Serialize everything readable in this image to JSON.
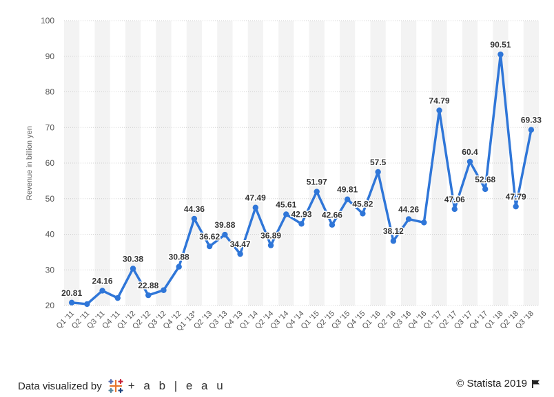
{
  "chart_data": {
    "type": "line",
    "title": "",
    "xlabel": "",
    "ylabel": "Revenue in billion yen",
    "ylim": [
      20,
      100
    ],
    "yticks": [
      20,
      30,
      40,
      50,
      60,
      70,
      80,
      90,
      100
    ],
    "grid": true,
    "categories": [
      "Q1 '11",
      "Q2 '11",
      "Q3 '11",
      "Q4 '11",
      "Q1 '12",
      "Q2 '12",
      "Q3 '12",
      "Q4 '12",
      "Q1 '13*",
      "Q2 '13",
      "Q3 '13",
      "Q4 '13",
      "Q1 '14",
      "Q2 '14",
      "Q3 '14",
      "Q4 '14",
      "Q1 '15",
      "Q2 '15",
      "Q3 '15",
      "Q4 '15",
      "Q1 '16",
      "Q2 '16",
      "Q3 '16",
      "Q4 '16",
      "Q1 '17",
      "Q2 '17",
      "Q3 '17",
      "Q4 '17",
      "Q1 '18",
      "Q2 '18",
      "Q3 '18"
    ],
    "values": [
      20.81,
      20.4,
      24.16,
      22.1,
      30.38,
      22.88,
      24.3,
      30.88,
      44.36,
      36.62,
      39.88,
      34.47,
      47.49,
      36.89,
      45.61,
      42.93,
      51.97,
      42.66,
      49.81,
      45.82,
      57.5,
      38.12,
      44.26,
      43.3,
      74.79,
      47.06,
      60.4,
      52.68,
      90.51,
      47.79,
      69.33
    ],
    "labels": [
      "20.81",
      "",
      "24.16",
      "",
      "30.38",
      "22.88",
      "",
      "30.88",
      "44.36",
      "36.62",
      "39.88",
      "34.47",
      "47.49",
      "36.89",
      "45.61",
      "42.93",
      "51.97",
      "42.66",
      "49.81",
      "45.82",
      "57.5",
      "38.12",
      "44.26",
      "",
      "74.79",
      "47.06",
      "60.4",
      "52.68",
      "90.51",
      "47.79",
      "69.33"
    ],
    "colors": {
      "line": "#2f76d8",
      "label": "#333333",
      "band": "#f3f3f3",
      "grid": "#cfcfcf",
      "axis": "#555555"
    }
  },
  "footer": {
    "left_text": "Data visualized by",
    "logo_word": "+ a b | e a u",
    "right_text": "© Statista 2019"
  }
}
